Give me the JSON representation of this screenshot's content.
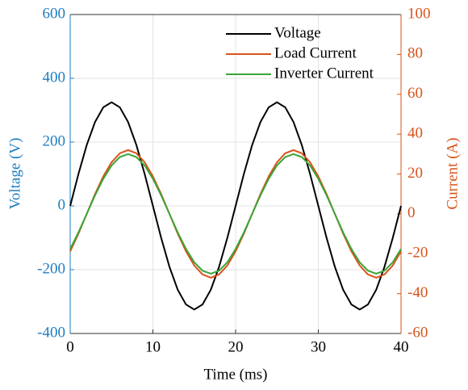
{
  "chart_data": {
    "type": "line",
    "x_label": "Time (ms)",
    "y_label": "Voltage (V)",
    "y2_label": "Current (A)",
    "x": [
      0,
      1,
      2,
      3,
      4,
      5,
      6,
      7,
      8,
      9,
      10,
      11,
      12,
      13,
      14,
      15,
      16,
      17,
      18,
      19,
      20,
      21,
      22,
      23,
      24,
      25,
      26,
      27,
      28,
      29,
      30,
      31,
      32,
      33,
      34,
      35,
      36,
      37,
      38,
      39,
      40
    ],
    "series": [
      {
        "name": "Voltage",
        "color": "#000000",
        "axis": "y",
        "values": [
          0,
          100.4,
          191,
          262.9,
          309.1,
          325,
          309.1,
          262.9,
          191,
          100.4,
          0,
          -100.4,
          -191,
          -262.9,
          -309.1,
          -325,
          -309.1,
          -262.9,
          -191,
          -100.4,
          0,
          100.4,
          191,
          262.9,
          309.1,
          325,
          309.1,
          262.9,
          191,
          100.4,
          0,
          -100.4,
          -191,
          -262.9,
          -309.1,
          -325,
          -309.1,
          -262.9,
          -191,
          -100.4,
          0
        ]
      },
      {
        "name": "Load Current",
        "color": "#d95319",
        "axis": "y2",
        "values": [
          -18.8,
          -9.9,
          0,
          9.9,
          18.8,
          25.9,
          30.4,
          32,
          30.4,
          25.9,
          18.8,
          9.9,
          0,
          -9.9,
          -18.8,
          -25.9,
          -30.4,
          -32,
          -30.4,
          -25.9,
          -18.8,
          -9.9,
          0,
          9.9,
          18.8,
          25.9,
          30.4,
          32,
          30.4,
          25.9,
          18.8,
          9.9,
          0,
          -9.9,
          -18.8,
          -25.9,
          -30.4,
          -32,
          -30.4,
          -25.9,
          -18.8
        ]
      },
      {
        "name": "Inverter Current",
        "color": "#3aa53a",
        "axis": "y2",
        "values": [
          -17.6,
          -9.3,
          0,
          9.3,
          17.6,
          24.3,
          28.5,
          30,
          28.5,
          24.3,
          17.6,
          9.3,
          0,
          -9.3,
          -17.6,
          -24.3,
          -28.5,
          -30,
          -28.5,
          -24.3,
          -17.6,
          -9.3,
          0,
          9.3,
          17.6,
          24.3,
          28.5,
          30,
          28.5,
          24.3,
          17.6,
          9.3,
          0,
          -9.3,
          -17.6,
          -24.3,
          -28.5,
          -30,
          -28.5,
          -24.3,
          -17.6
        ]
      }
    ],
    "xlim": [
      0,
      40
    ],
    "xticks": [
      0,
      10,
      20,
      30,
      40
    ],
    "ylim": [
      -400,
      600
    ],
    "yticks": [
      -400,
      -200,
      0,
      200,
      400,
      600
    ],
    "y2lim": [
      -60,
      100
    ],
    "y2ticks": [
      -60,
      -40,
      -20,
      0,
      20,
      40,
      60,
      80,
      100
    ],
    "grid": true,
    "legend": "upper right"
  }
}
